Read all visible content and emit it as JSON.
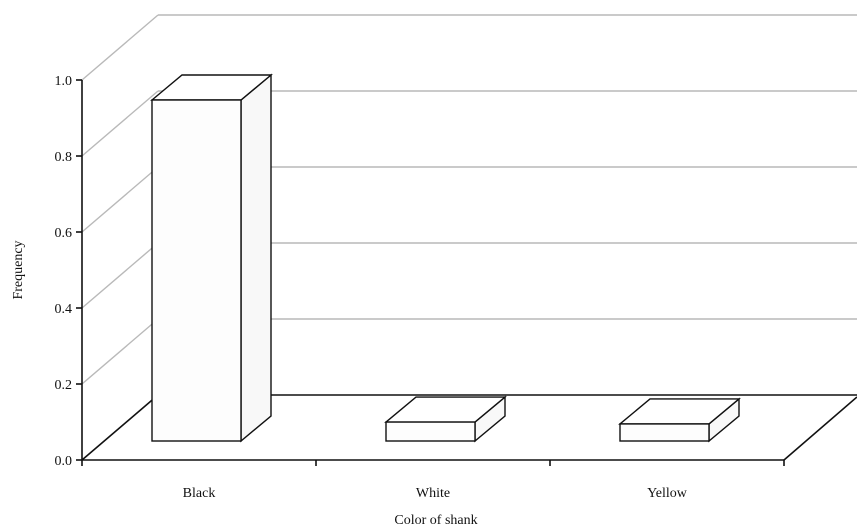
{
  "chart_data": {
    "type": "bar",
    "categories": [
      "Black",
      "White",
      "Yellow"
    ],
    "values": [
      0.9,
      0.05,
      0.045
    ],
    "title": "",
    "xlabel": "Color of shank",
    "ylabel": "Frequency",
    "ylim": [
      0,
      1.0
    ],
    "yticks": [
      "0.0",
      "0.2",
      "0.4",
      "0.6",
      "0.8",
      "1.0"
    ],
    "grid": true,
    "style": "3d"
  }
}
